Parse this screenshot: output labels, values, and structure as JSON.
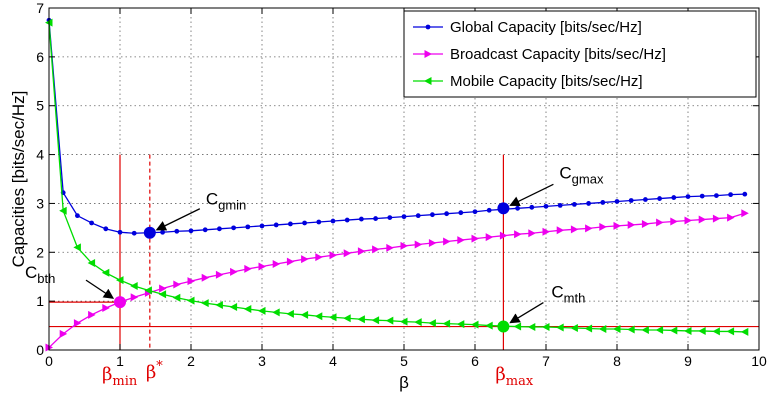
{
  "chart_data": {
    "type": "line",
    "xlabel": "β",
    "ylabel": "Capacities [bits/sec/Hz]",
    "xlim": [
      0,
      10
    ],
    "ylim": [
      0,
      7
    ],
    "xticks": [
      "0",
      "1",
      "2",
      "3",
      "4",
      "5",
      "6",
      "7",
      "8",
      "9",
      "10"
    ],
    "yticks": [
      "0",
      "1",
      "2",
      "3",
      "4",
      "5",
      "6",
      "7"
    ],
    "grid": true,
    "legend": "top-right",
    "series": [
      {
        "name": "Global Capacity [bits/sec/Hz]",
        "color": "#0000dd",
        "marker": "dot",
        "x": [
          0.0,
          0.2,
          0.4,
          0.6,
          0.8,
          1.0,
          1.2,
          1.4,
          1.6,
          1.8,
          2.0,
          2.2,
          2.4,
          2.6,
          2.8,
          3.0,
          3.2,
          3.4,
          3.6,
          3.8,
          4.0,
          4.2,
          4.4,
          4.6,
          4.8,
          5.0,
          5.2,
          5.4,
          5.6,
          5.8,
          6.0,
          6.2,
          6.4,
          6.6,
          6.8,
          7.0,
          7.2,
          7.4,
          7.6,
          7.8,
          8.0,
          8.2,
          8.4,
          8.6,
          8.8,
          9.0,
          9.2,
          9.4,
          9.6,
          9.8
        ],
        "y": [
          6.75,
          3.22,
          2.75,
          2.6,
          2.48,
          2.41,
          2.39,
          2.4,
          2.41,
          2.43,
          2.44,
          2.46,
          2.48,
          2.5,
          2.52,
          2.54,
          2.56,
          2.58,
          2.6,
          2.62,
          2.64,
          2.66,
          2.68,
          2.69,
          2.71,
          2.73,
          2.75,
          2.77,
          2.79,
          2.81,
          2.83,
          2.86,
          2.88,
          2.9,
          2.92,
          2.94,
          2.96,
          2.98,
          3.0,
          3.02,
          3.04,
          3.06,
          3.08,
          3.1,
          3.12,
          3.14,
          3.15,
          3.16,
          3.18,
          3.19
        ]
      },
      {
        "name": "Broadcast Capacity [bits/sec/Hz]",
        "color": "#ee00ee",
        "marker": "triangle-right",
        "x": [
          0.0,
          0.2,
          0.4,
          0.6,
          0.8,
          1.0,
          1.2,
          1.4,
          1.6,
          1.8,
          2.0,
          2.2,
          2.4,
          2.6,
          2.8,
          3.0,
          3.2,
          3.4,
          3.6,
          3.8,
          4.0,
          4.2,
          4.4,
          4.6,
          4.8,
          5.0,
          5.2,
          5.4,
          5.6,
          5.8,
          6.0,
          6.2,
          6.4,
          6.6,
          6.8,
          7.0,
          7.2,
          7.4,
          7.6,
          7.8,
          8.0,
          8.2,
          8.4,
          8.6,
          8.8,
          9.0,
          9.2,
          9.4,
          9.6,
          9.8
        ],
        "y": [
          0.05,
          0.33,
          0.55,
          0.72,
          0.86,
          0.98,
          1.08,
          1.17,
          1.26,
          1.34,
          1.41,
          1.48,
          1.54,
          1.6,
          1.66,
          1.71,
          1.76,
          1.81,
          1.86,
          1.9,
          1.94,
          1.98,
          2.02,
          2.06,
          2.09,
          2.13,
          2.16,
          2.19,
          2.22,
          2.25,
          2.28,
          2.31,
          2.34,
          2.37,
          2.39,
          2.42,
          2.45,
          2.47,
          2.49,
          2.52,
          2.54,
          2.56,
          2.58,
          2.61,
          2.63,
          2.65,
          2.67,
          2.69,
          2.71,
          2.8
        ]
      },
      {
        "name": "Mobile Capacity [bits/sec/Hz]",
        "color": "#00dd00",
        "marker": "triangle-left",
        "x": [
          0.0,
          0.2,
          0.4,
          0.6,
          0.8,
          1.0,
          1.2,
          1.4,
          1.6,
          1.8,
          2.0,
          2.2,
          2.4,
          2.6,
          2.8,
          3.0,
          3.2,
          3.4,
          3.6,
          3.8,
          4.0,
          4.2,
          4.4,
          4.6,
          4.8,
          5.0,
          5.2,
          5.4,
          5.6,
          5.8,
          6.0,
          6.2,
          6.4,
          6.6,
          6.8,
          7.0,
          7.2,
          7.4,
          7.6,
          7.8,
          8.0,
          8.2,
          8.4,
          8.6,
          8.8,
          9.0,
          9.2,
          9.4,
          9.6,
          9.8
        ],
        "y": [
          6.7,
          2.85,
          2.1,
          1.78,
          1.58,
          1.43,
          1.31,
          1.22,
          1.14,
          1.07,
          1.01,
          0.96,
          0.92,
          0.88,
          0.84,
          0.8,
          0.77,
          0.74,
          0.72,
          0.69,
          0.67,
          0.65,
          0.63,
          0.61,
          0.6,
          0.58,
          0.57,
          0.55,
          0.54,
          0.53,
          0.52,
          0.5,
          0.49,
          0.48,
          0.47,
          0.47,
          0.46,
          0.45,
          0.44,
          0.43,
          0.43,
          0.42,
          0.41,
          0.41,
          0.4,
          0.39,
          0.39,
          0.38,
          0.38,
          0.37
        ]
      }
    ],
    "annotations": {
      "cgmin": {
        "base": "C",
        "sub": "gmin",
        "x": 1.42,
        "y": 2.4,
        "color": "#0000dd"
      },
      "cgmax": {
        "base": "C",
        "sub": "gmax",
        "x": 6.4,
        "y": 2.9,
        "color": "#0000dd"
      },
      "cbth": {
        "base": "C",
        "sub": "bth",
        "x": 1.0,
        "y": 0.98,
        "color": "#ee00ee"
      },
      "cmth": {
        "base": "C",
        "sub": "mth",
        "x": 6.4,
        "y": 0.48,
        "color": "#00dd00"
      }
    },
    "reference_lines": {
      "beta_min": {
        "base": "β",
        "sub": "min",
        "x": 1.0,
        "style": "solid"
      },
      "beta_star": {
        "base": "β",
        "sup": "*",
        "x": 1.42,
        "style": "dashed"
      },
      "beta_max": {
        "base": "β",
        "sub": "max",
        "x": 6.4,
        "style": "solid"
      },
      "color": "#e00000",
      "vline_top": 4.0,
      "hline_cmth": 0.48,
      "hline_cbth": 0.98
    }
  }
}
